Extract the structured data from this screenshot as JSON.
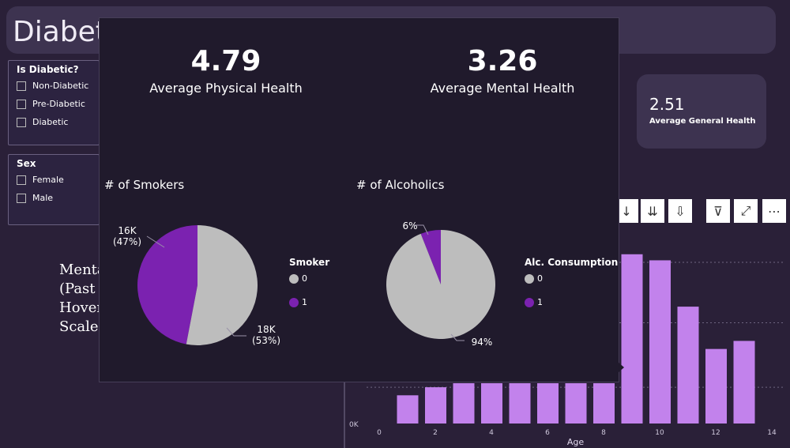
{
  "header": {
    "title": "Diabete"
  },
  "slicers": {
    "diabetic": {
      "title": "Is Diabetic?",
      "options": [
        "Non-Diabetic",
        "Pre-Diabetic",
        "Diabetic"
      ]
    },
    "sex": {
      "title": "Sex",
      "options": [
        "Female",
        "Male"
      ]
    }
  },
  "general_card": {
    "value": "2.51",
    "label": "Average General Health"
  },
  "background_text": {
    "lines": [
      "Menta",
      "(Past",
      "Hover",
      "Scale:"
    ]
  },
  "toolbar": {
    "icons": [
      "sort-descending-icon",
      "sort-double-icon",
      "drill-down-icon",
      "filter-icon",
      "focus-mode-icon",
      "more-options-icon"
    ],
    "glyphs": [
      "↓",
      "⇊",
      "⇩",
      "⊽",
      "⤢",
      "⋯"
    ]
  },
  "tooltip": {
    "physical": {
      "value": "4.79",
      "label": "Average Physical Health"
    },
    "mental": {
      "value": "3.26",
      "label": "Average Mental Health"
    },
    "smokers": {
      "title": "# of Smokers",
      "legend_title": "Smoker",
      "legend": [
        "0",
        "1"
      ],
      "label_0": [
        "18K",
        "(53%)"
      ],
      "label_1": [
        "16K",
        "(47%)"
      ]
    },
    "alcoholics": {
      "title": "# of Alcoholics",
      "legend_title": "Alc. Consumption",
      "legend": [
        "0",
        "1"
      ],
      "label_0": "94%",
      "label_1": "6%"
    }
  },
  "colors": {
    "gray": "#bdbdbd",
    "purple": "#7b22b0",
    "bar": "#c282ec"
  },
  "chart_data": [
    {
      "type": "pie",
      "title": "# of Smokers",
      "legend_title": "Smoker",
      "categories": [
        "0",
        "1"
      ],
      "values": [
        18000,
        16000
      ],
      "percents": [
        53,
        47
      ]
    },
    {
      "type": "pie",
      "title": "# of Alcoholics",
      "legend_title": "Alc. Consumption",
      "categories": [
        "0",
        "1"
      ],
      "percents": [
        94,
        6
      ]
    },
    {
      "type": "bar",
      "xlabel": "Age",
      "x_ticks": [
        0,
        2,
        4,
        6,
        8,
        10,
        12,
        14
      ],
      "y_tick_labels": [
        "0K"
      ],
      "x": [
        1,
        2,
        3,
        4,
        5,
        6,
        7,
        8,
        9,
        10,
        11,
        12,
        13
      ],
      "values": [
        0.7,
        0.9,
        1.0,
        1.0,
        1.0,
        1.0,
        1.0,
        1.0,
        4.2,
        4.05,
        2.9,
        1.85,
        2.05
      ]
    }
  ]
}
